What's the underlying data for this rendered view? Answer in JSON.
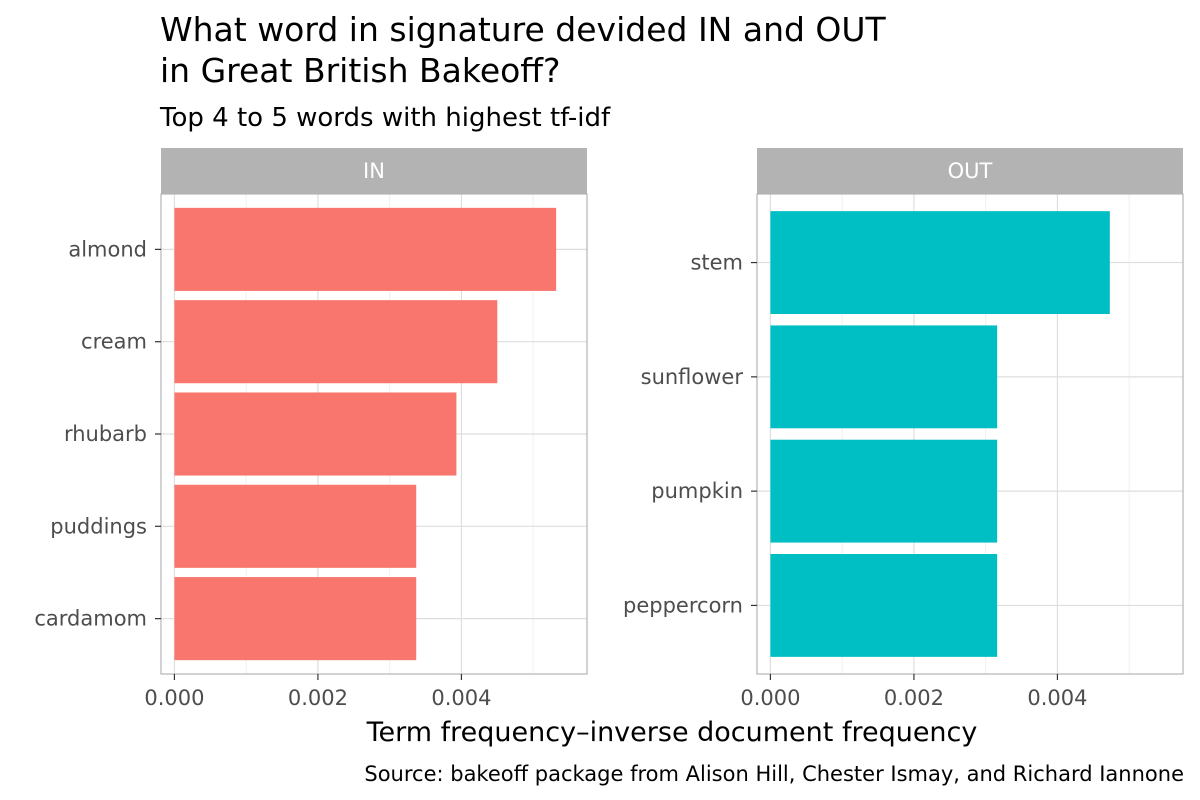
{
  "title_line1": "What word in signature devided IN and OUT",
  "title_line2": "in Great British Bakeoff?",
  "subtitle": "Top 4 to 5 words with highest tf-idf",
  "caption": "Source: bakeoff package from Alison Hill, Chester Ismay, and Richard Iannone",
  "chart_data": {
    "type": "bar",
    "orientation": "horizontal",
    "title": "What word in signature devided IN and OUT in Great British Bakeoff?",
    "subtitle": "Top 4 to 5 words with highest tf-idf",
    "xlabel": "Term frequency–inverse document frequency",
    "ylabel": "",
    "xlim": [
      0,
      0.00555
    ],
    "x_ticks": [
      "0.000",
      "0.002",
      "0.004"
    ],
    "x_tick_values": [
      0,
      0.002,
      0.004
    ],
    "grid": true,
    "legend": "none",
    "panels": [
      {
        "name": "IN",
        "color": "#F8766D",
        "categories": [
          "almond",
          "cream",
          "rhubarb",
          "puddings",
          "cardamom"
        ],
        "values": [
          0.00532,
          0.0045,
          0.00393,
          0.00337,
          0.00337
        ]
      },
      {
        "name": "OUT",
        "color": "#00BFC4",
        "categories": [
          "stem",
          "sunflower",
          "pumpkin",
          "peppercorn"
        ],
        "values": [
          0.00473,
          0.00316,
          0.00316,
          0.00316
        ]
      }
    ]
  }
}
